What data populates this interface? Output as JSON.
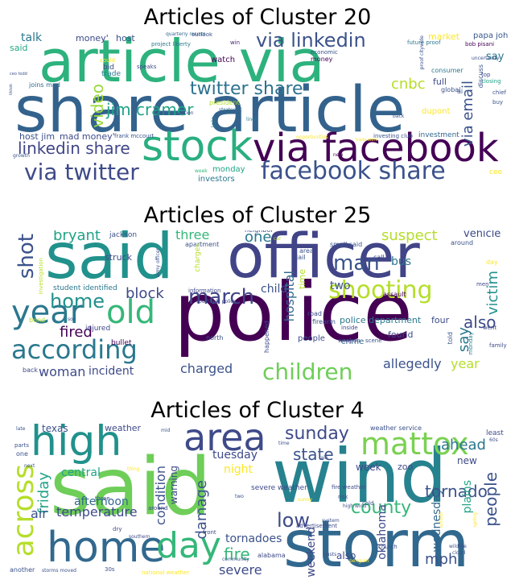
{
  "panels": [
    {
      "title": "Articles of Cluster 20",
      "words": [
        {
          "t": "share article",
          "c": "#33638d"
        },
        {
          "t": "article via",
          "c": "#2db27d"
        },
        {
          "t": "via facebook",
          "c": "#440154"
        },
        {
          "t": "stock",
          "c": "#29af7f"
        },
        {
          "t": "facebook share",
          "c": "#3b528b"
        },
        {
          "t": "via twitter",
          "c": "#3e4a89"
        },
        {
          "t": "via linkedin",
          "c": "#3b528b"
        },
        {
          "t": "twitter share",
          "c": "#2c728e"
        },
        {
          "t": "jim cramer",
          "c": "#20a386"
        },
        {
          "t": "linkedin share",
          "c": "#404688"
        },
        {
          "t": "video",
          "c": "#9bd93c"
        },
        {
          "t": "cnbc",
          "c": "#b5de2b"
        },
        {
          "t": "via email",
          "c": "#3b528b"
        },
        {
          "t": "talk",
          "c": "#2a788e"
        },
        {
          "t": "money'",
          "c": "#3e4a89"
        },
        {
          "t": "host",
          "c": "#3b528b"
        },
        {
          "t": "said",
          "c": "#22a884"
        },
        {
          "t": "quarterly results",
          "c": "#31688e"
        },
        {
          "t": "outlook",
          "c": "#3b528b"
        },
        {
          "t": "win",
          "c": "#482878"
        },
        {
          "t": "market",
          "c": "#fde725"
        },
        {
          "t": "papa john",
          "c": "#38598c"
        },
        {
          "t": "money",
          "c": "#440154"
        },
        {
          "t": "bob pisani",
          "c": "#440154"
        },
        {
          "t": "say",
          "c": "#2a788e"
        },
        {
          "t": "economic",
          "c": "#3b528b"
        },
        {
          "t": "could",
          "c": "#fde725"
        },
        {
          "t": "watch",
          "c": "#440154"
        },
        {
          "t": "bid",
          "c": "#3e4a89"
        },
        {
          "t": "trade",
          "c": "#2a788e"
        },
        {
          "t": "speaks",
          "c": "#3e4a89"
        },
        {
          "t": "project liberty",
          "c": "#2a788e"
        },
        {
          "t": "joins mad",
          "c": "#31688e"
        },
        {
          "t": "host jim",
          "c": "#3b528b"
        },
        {
          "t": "mad money'",
          "c": "#3e4a89"
        },
        {
          "t": "frank mccourt",
          "c": "#3b528b"
        },
        {
          "t": "ceo todd",
          "c": "#3b528b"
        },
        {
          "t": "tiktok",
          "c": "#3b528b"
        },
        {
          "t": "growth",
          "c": "#3b528b"
        },
        {
          "t": "president",
          "c": "#b5de2b"
        },
        {
          "t": "strategist",
          "c": "#31688e"
        },
        {
          "t": "fast",
          "c": "#3e4a89"
        },
        {
          "t": "action",
          "c": "#3e4a89"
        },
        {
          "t": "join",
          "c": "#2a788e"
        },
        {
          "t": "lines",
          "c": "#2a788e"
        },
        {
          "t": "monday",
          "c": "#20a386"
        },
        {
          "t": "investors",
          "c": "#2a788e"
        },
        {
          "t": "week",
          "c": "#35b779"
        },
        {
          "t": "trade alert",
          "c": "#fde725"
        },
        {
          "t": "opportunities",
          "c": "#fde725"
        },
        {
          "t": "investing club",
          "c": "#3b528b"
        },
        {
          "t": "investment",
          "c": "#31688e"
        },
        {
          "t": "dupont",
          "c": "#fde725"
        },
        {
          "t": "consumer",
          "c": "#2a788e"
        },
        {
          "t": "full",
          "c": "#3e4a89"
        },
        {
          "t": "global",
          "c": "#3b528b"
        },
        {
          "t": "ai",
          "c": "#3b528b"
        },
        {
          "t": "discuss",
          "c": "#3b528b"
        },
        {
          "t": "back",
          "c": "#3b528b"
        },
        {
          "t": "new",
          "c": "#440154"
        },
        {
          "t": "ceo",
          "c": "#fde725"
        },
        {
          "t": "future proof",
          "c": "#2a788e"
        },
        {
          "t": "uncertainty",
          "c": "#3b528b"
        },
        {
          "t": "top",
          "c": "#3e4a89"
        },
        {
          "t": "closing",
          "c": "#20a386"
        },
        {
          "t": "chief",
          "c": "#3b528b"
        },
        {
          "t": "buy",
          "c": "#3b528b"
        },
        {
          "t": "proof citywide",
          "c": "#3b528b"
        }
      ]
    },
    {
      "title": "Articles of Cluster 25",
      "words": [
        {
          "t": "police",
          "c": "#440154"
        },
        {
          "t": "officer",
          "c": "#414487"
        },
        {
          "t": "said",
          "c": "#21918c"
        },
        {
          "t": "shooting",
          "c": "#b5de2b"
        },
        {
          "t": "old",
          "c": "#35b779"
        },
        {
          "t": "year",
          "c": "#2a788e"
        },
        {
          "t": "according",
          "c": "#2a788e"
        },
        {
          "t": "children",
          "c": "#6ece58"
        },
        {
          "t": "home",
          "c": "#21918c"
        },
        {
          "t": "march",
          "c": "#414487"
        },
        {
          "t": "man",
          "c": "#3b528b"
        },
        {
          "t": "shot",
          "c": "#3b528b"
        },
        {
          "t": "bryant",
          "c": "#20a386"
        },
        {
          "t": "three",
          "c": "#35b779"
        },
        {
          "t": "suspect",
          "c": "#b5de2b"
        },
        {
          "t": "vehicle",
          "c": "#3e4a89"
        },
        {
          "t": "one",
          "c": "#2a788e"
        },
        {
          "t": "block",
          "c": "#3e4a89"
        },
        {
          "t": "fired",
          "c": "#440154"
        },
        {
          "t": "woman",
          "c": "#3e4a89"
        },
        {
          "t": "incident",
          "c": "#3e4a89"
        },
        {
          "t": "charged",
          "c": "#3b528b"
        },
        {
          "t": "allegedly",
          "c": "#3b528b"
        },
        {
          "t": "year",
          "c": "#b5de2b"
        },
        {
          "t": "also",
          "c": "#3e4a89"
        },
        {
          "t": "say",
          "c": "#2a788e"
        },
        {
          "t": "victim",
          "c": "#21918c"
        },
        {
          "t": "two",
          "c": "#3b528b"
        },
        {
          "t": "child",
          "c": "#3b528b"
        },
        {
          "t": "hospital",
          "c": "#31688e"
        },
        {
          "t": "bus",
          "c": "#2a788e"
        },
        {
          "t": "police department",
          "c": "#2a788e"
        },
        {
          "t": "four",
          "c": "#3e4a89"
        },
        {
          "t": "found",
          "c": "#3e4a89"
        },
        {
          "t": "crime",
          "c": "#31688e"
        },
        {
          "t": "firearm",
          "c": "#3b528b"
        },
        {
          "t": "jackson",
          "c": "#3b528b"
        },
        {
          "t": "apartment",
          "c": "#3b528b"
        },
        {
          "t": "struck",
          "c": "#3e4a89"
        },
        {
          "t": "student identified",
          "c": "#2a788e"
        },
        {
          "t": "information",
          "c": "#3e4a89"
        },
        {
          "t": "injured",
          "c": "#3e4a89"
        },
        {
          "t": "bullet",
          "c": "#440154"
        },
        {
          "t": "back",
          "c": "#3e4a89"
        },
        {
          "t": "neighbor",
          "c": "#3b528b"
        },
        {
          "t": "small said",
          "c": "#3b528b"
        },
        {
          "t": "call",
          "c": "#3e4a89"
        },
        {
          "t": "assault",
          "c": "#440154"
        },
        {
          "t": "men",
          "c": "#3e4a89"
        },
        {
          "t": "people",
          "c": "#3e4a89"
        },
        {
          "t": "told",
          "c": "#3b528b"
        },
        {
          "t": "went",
          "c": "#3e4a89"
        },
        {
          "t": "family",
          "c": "#3e4a89"
        },
        {
          "t": "jail",
          "c": "#3b528b"
        },
        {
          "t": "area",
          "c": "#3b528b"
        },
        {
          "t": "time",
          "c": "#b5de2b"
        },
        {
          "t": "road",
          "c": "#3e4a89"
        },
        {
          "t": "north",
          "c": "#3b528b"
        },
        {
          "t": "happened",
          "c": "#3e4a89"
        },
        {
          "t": "weapon",
          "c": "#3e4a89"
        },
        {
          "t": "scene",
          "c": "#3b528b"
        },
        {
          "t": "inside",
          "c": "#3e4a89"
        },
        {
          "t": "investigation",
          "c": "#b5de2b"
        },
        {
          "t": "bond",
          "c": "#b5de2b"
        },
        {
          "t": "southfield police",
          "c": "#3e4a89"
        },
        {
          "t": "charges",
          "c": "#b5de2b"
        },
        {
          "t": "army officer",
          "c": "#3b528b"
        },
        {
          "t": "monday",
          "c": "#2a788e"
        },
        {
          "t": "day",
          "c": "#fde725"
        },
        {
          "t": "around",
          "c": "#3b528b"
        },
        {
          "t": "car",
          "c": "#b5de2b"
        },
        {
          "t": "son",
          "c": "#3b528b"
        }
      ]
    },
    {
      "title": "Articles of Cluster 4",
      "words": [
        {
          "t": "wind",
          "c": "#26828e"
        },
        {
          "t": "said",
          "c": "#6ece58"
        },
        {
          "t": "storm",
          "c": "#31688e"
        },
        {
          "t": "high",
          "c": "#21918c"
        },
        {
          "t": "area",
          "c": "#3e4a89"
        },
        {
          "t": "home",
          "c": "#31688e"
        },
        {
          "t": "day",
          "c": "#35b779"
        },
        {
          "t": "mattox",
          "c": "#7ad151"
        },
        {
          "t": "across",
          "c": "#b5de2b"
        },
        {
          "t": "sunday",
          "c": "#3e4a89"
        },
        {
          "t": "state",
          "c": "#3b528b"
        },
        {
          "t": "county",
          "c": "#35b779"
        },
        {
          "t": "tornado",
          "c": "#3b528b"
        },
        {
          "t": "ahead",
          "c": "#2a788e"
        },
        {
          "t": "low",
          "c": "#3e4a89"
        },
        {
          "t": "friday",
          "c": "#20a386"
        },
        {
          "t": "people",
          "c": "#3b528b"
        },
        {
          "t": "mph",
          "c": "#3b528b"
        },
        {
          "t": "temperature",
          "c": "#3e4a89"
        },
        {
          "t": "fire",
          "c": "#35b779"
        },
        {
          "t": "severe",
          "c": "#3e4a89"
        },
        {
          "t": "air",
          "c": "#3b528b"
        },
        {
          "t": "afternoon",
          "c": "#31688e"
        },
        {
          "t": "condition",
          "c": "#3b528b"
        },
        {
          "t": "damage",
          "c": "#3b528b"
        },
        {
          "t": "tornadoes",
          "c": "#3b528b"
        },
        {
          "t": "oklahoma",
          "c": "#3e4a89"
        },
        {
          "t": "weekend",
          "c": "#3e4a89"
        },
        {
          "t": "wednesday",
          "c": "#31688e"
        },
        {
          "t": "plains",
          "c": "#20a386"
        },
        {
          "t": "tuesday",
          "c": "#3e4a89"
        },
        {
          "t": "night",
          "c": "#fde725"
        },
        {
          "t": "warning",
          "c": "#3e4a89"
        },
        {
          "t": "central",
          "c": "#20a386"
        },
        {
          "t": "texas",
          "c": "#3b528b"
        },
        {
          "t": "weather",
          "c": "#3e4a89"
        },
        {
          "t": "week",
          "c": "#3e4a89"
        },
        {
          "t": "zoo",
          "c": "#3e4a89"
        },
        {
          "t": "new",
          "c": "#3e4a89"
        },
        {
          "t": "also",
          "c": "#3e4a89"
        },
        {
          "t": "weather service",
          "c": "#3b528b"
        },
        {
          "t": "least",
          "c": "#3e4a89"
        },
        {
          "t": "severe weather",
          "c": "#3e4a89"
        },
        {
          "t": "fire weather",
          "c": "#3e4a89"
        },
        {
          "t": "alabama",
          "c": "#3e4a89"
        },
        {
          "t": "cold",
          "c": "#3b528b"
        },
        {
          "t": "risk",
          "c": "#3b528b"
        },
        {
          "t": "church",
          "c": "#3b528b"
        },
        {
          "t": "three",
          "c": "#3b528b"
        },
        {
          "t": "dry",
          "c": "#3e4a89"
        },
        {
          "t": "front",
          "c": "#3e4a89"
        },
        {
          "t": "southern",
          "c": "#3e4a89"
        },
        {
          "t": "around",
          "c": "#3e4a89"
        },
        {
          "t": "one",
          "c": "#3b528b"
        },
        {
          "t": "parts",
          "c": "#3b528b"
        },
        {
          "t": "next",
          "c": "#3b528b"
        },
        {
          "t": "another",
          "c": "#3b528b"
        },
        {
          "t": "storms moved",
          "c": "#3b528b"
        },
        {
          "t": "30s",
          "c": "#3b528b"
        },
        {
          "t": "national weather",
          "c": "#fde725"
        },
        {
          "t": "community",
          "c": "#3b528b"
        },
        {
          "t": "advertisement",
          "c": "#3e4a89"
        },
        {
          "t": "penguin",
          "c": "#fde725"
        },
        {
          "t": "wildfire",
          "c": "#3b528b"
        },
        {
          "t": "cloud",
          "c": "#3b528b"
        },
        {
          "t": "high wind",
          "c": "#3b528b"
        },
        {
          "t": "system",
          "c": "#3b528b"
        },
        {
          "t": "two",
          "c": "#3b528b"
        },
        {
          "t": "mid",
          "c": "#3b528b"
        },
        {
          "t": "time",
          "c": "#3b528b"
        },
        {
          "t": "60s",
          "c": "#3b528b"
        },
        {
          "t": "school",
          "c": "#fde725"
        },
        {
          "t": "late",
          "c": "#3b528b"
        },
        {
          "t": "gusts",
          "c": "#3b528b"
        },
        {
          "t": "sunny",
          "c": "#fde725"
        },
        {
          "t": "rain",
          "c": "#3b528b"
        },
        {
          "t": "spring",
          "c": "#fde725"
        },
        {
          "t": "thing",
          "c": "#fde725"
        }
      ]
    }
  ]
}
